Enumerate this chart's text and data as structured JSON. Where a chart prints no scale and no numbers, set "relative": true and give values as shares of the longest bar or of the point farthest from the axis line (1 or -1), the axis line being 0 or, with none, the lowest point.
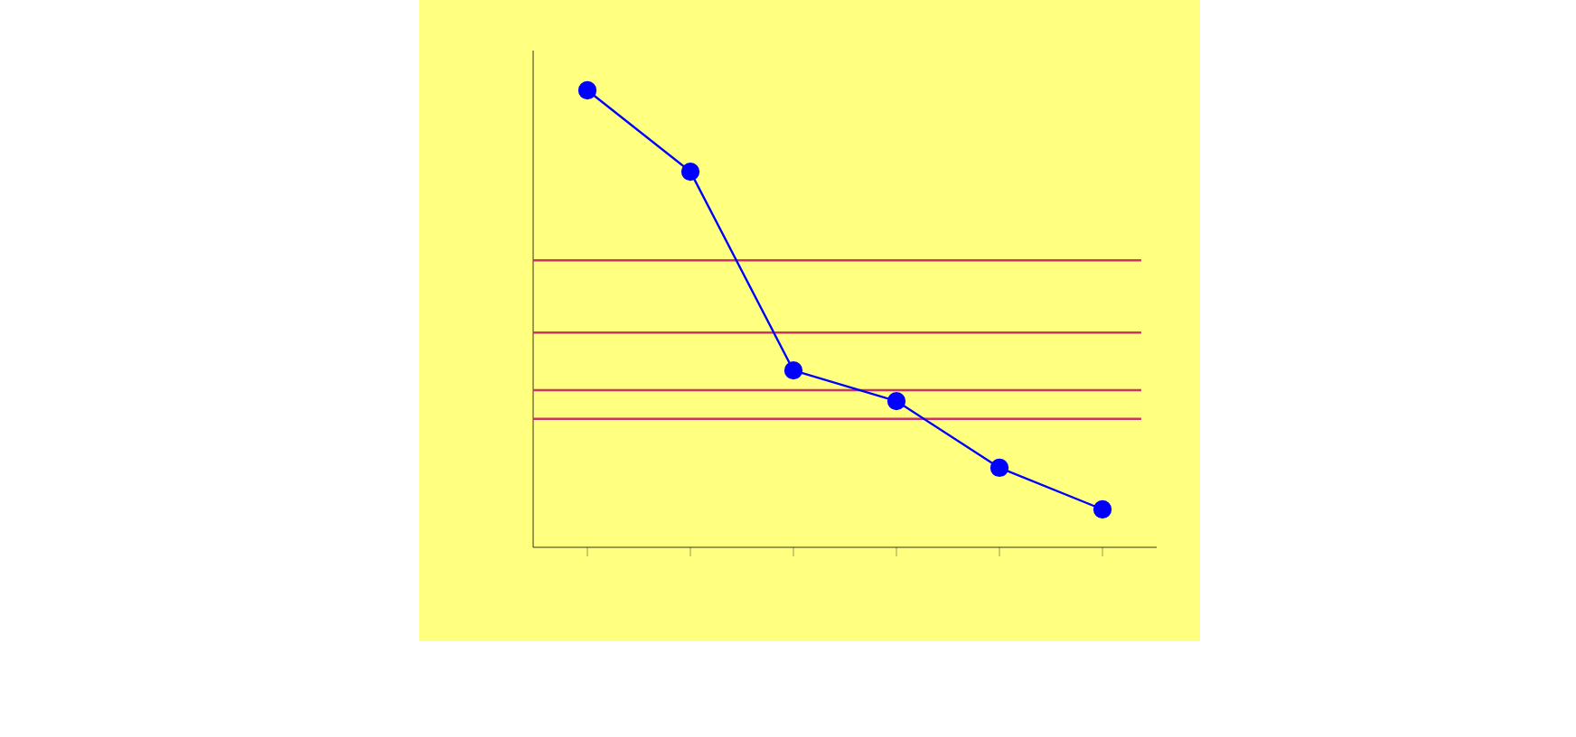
{
  "chart_data": {
    "type": "line",
    "relative": true,
    "categories": [
      null,
      null,
      null,
      null,
      null,
      null
    ],
    "series": [
      {
        "color": "#0000ff",
        "values": [
          1,
          0.822,
          0.387,
          0.32,
          0.174,
          0.083
        ]
      }
    ],
    "marker": "circle",
    "line_style": "solid",
    "grid": false,
    "ref_lines": [
      {
        "axis": "y",
        "value": 0.628,
        "color": "#cc3366"
      },
      {
        "axis": "y",
        "value": 0.47,
        "color": "#cc3366"
      },
      {
        "axis": "y",
        "value": 0.344,
        "color": "#cc3366"
      },
      {
        "axis": "y",
        "value": 0.281,
        "color": "#cc3366"
      }
    ]
  }
}
